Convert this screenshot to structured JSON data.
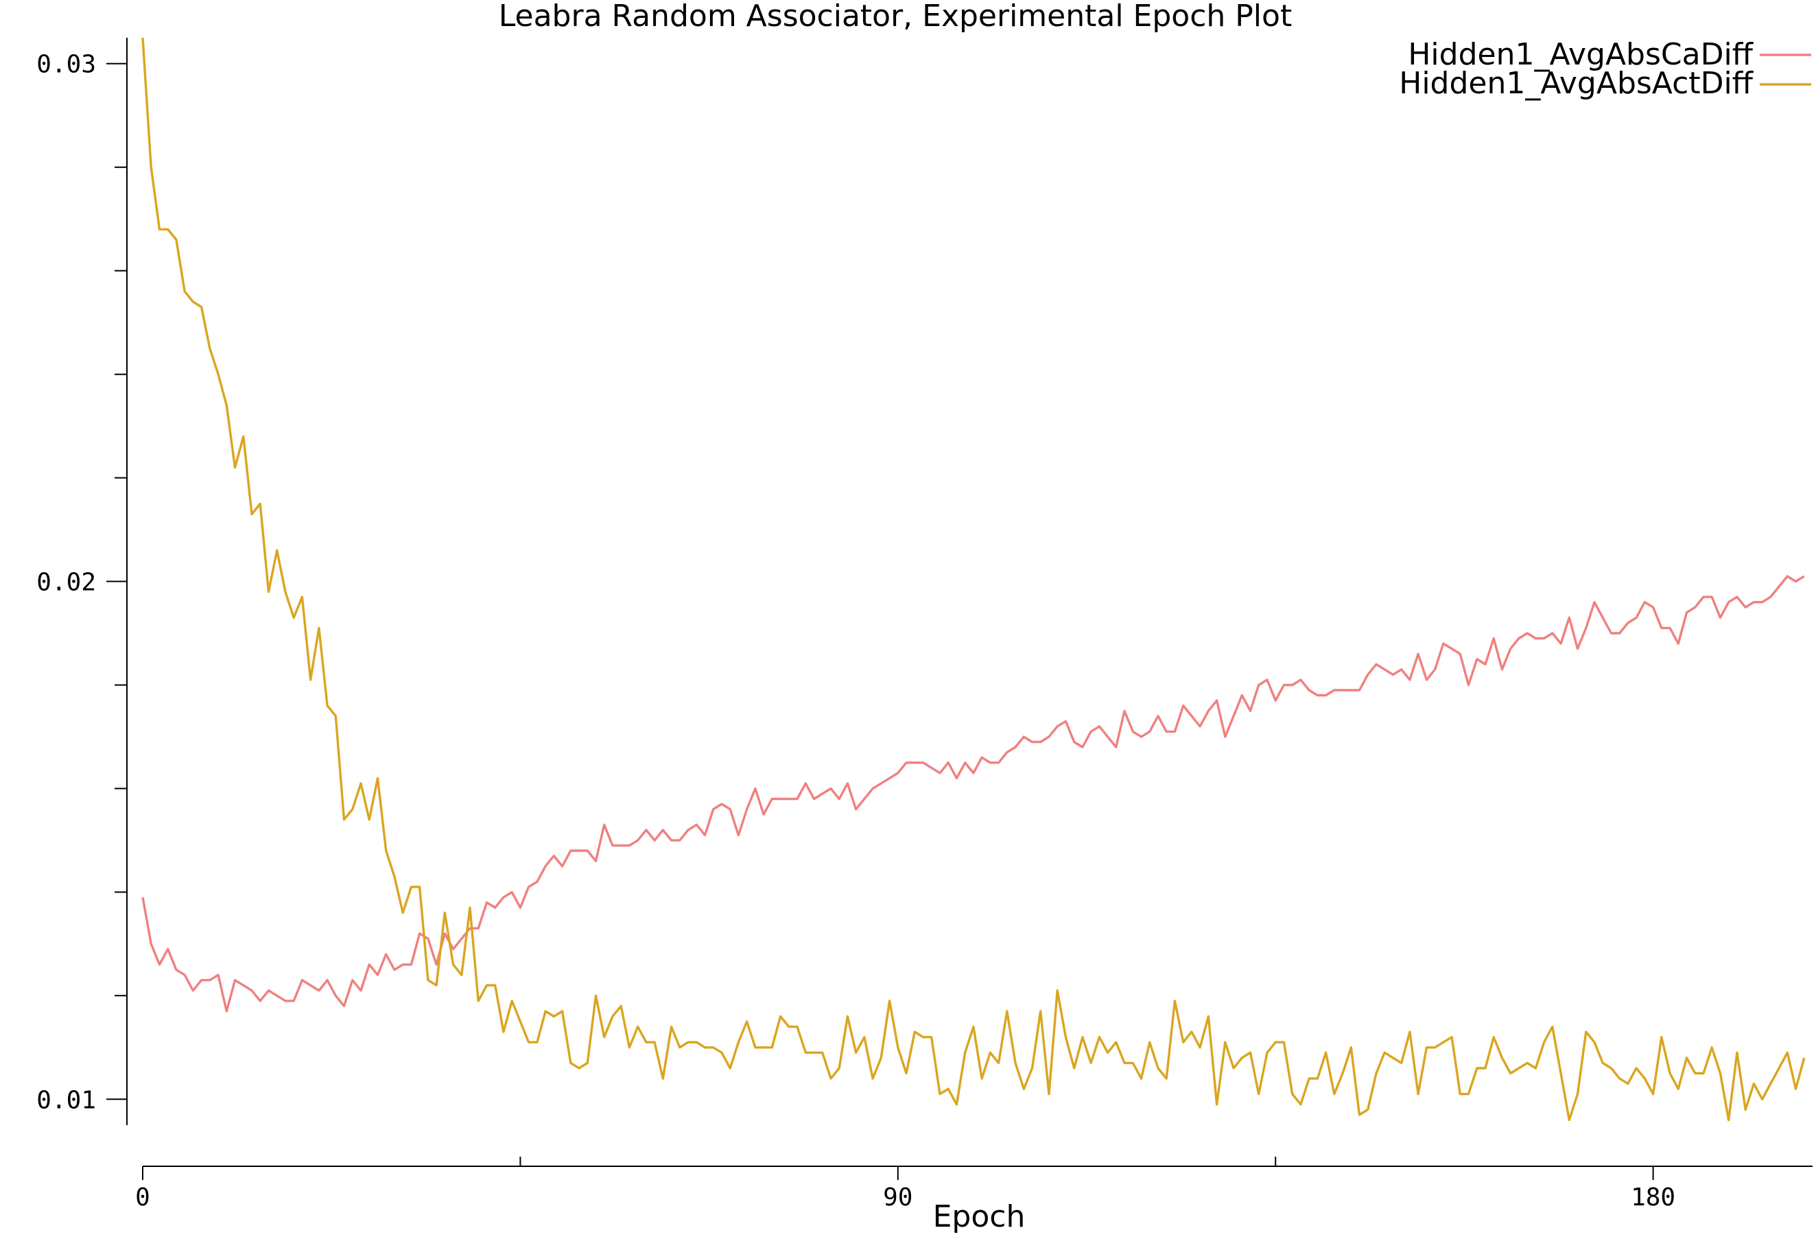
{
  "chart_data": {
    "type": "line",
    "title": "Leabra Random Associator, Experimental Epoch Plot",
    "xlabel": "Epoch",
    "ylabel": "",
    "xlim": [
      0,
      199
    ],
    "ylim": [
      0.0095,
      0.0305
    ],
    "x_ticks": [
      0,
      45,
      90,
      135,
      180
    ],
    "x_tick_labels": [
      "0",
      "",
      "90",
      "",
      "180"
    ],
    "y_ticks": [
      0.01,
      0.012,
      0.014,
      0.016,
      0.018,
      0.02,
      0.022,
      0.024,
      0.026,
      0.028,
      0.03
    ],
    "y_tick_labels": [
      "0.01",
      "",
      "",
      "",
      "",
      "0.02",
      "",
      "",
      "",
      "",
      "0.03"
    ],
    "legend_position": "top-right",
    "series": [
      {
        "name": "Hidden1_AvgAbsCaDiff",
        "color": "#f08080",
        "values": [
          0.0139,
          0.013,
          0.0126,
          0.0129,
          0.0125,
          0.0124,
          0.0121,
          0.0123,
          0.0123,
          0.0124,
          0.0117,
          0.0123,
          0.0122,
          0.0121,
          0.0119,
          0.0121,
          0.012,
          0.0119,
          0.0119,
          0.0123,
          0.0122,
          0.0121,
          0.0123,
          0.012,
          0.0118,
          0.0123,
          0.0121,
          0.0126,
          0.0124,
          0.0128,
          0.0125,
          0.0126,
          0.0126,
          0.0132,
          0.0131,
          0.0126,
          0.0132,
          0.0129,
          0.0131,
          0.0133,
          0.0133,
          0.0138,
          0.0137,
          0.0139,
          0.014,
          0.0137,
          0.0141,
          0.0142,
          0.0145,
          0.0147,
          0.0145,
          0.0148,
          0.0148,
          0.0148,
          0.0146,
          0.0153,
          0.0149,
          0.0149,
          0.0149,
          0.015,
          0.0152,
          0.015,
          0.0152,
          0.015,
          0.015,
          0.0152,
          0.0153,
          0.0151,
          0.0156,
          0.0157,
          0.0156,
          0.0151,
          0.0156,
          0.016,
          0.0155,
          0.0158,
          0.0158,
          0.0158,
          0.0158,
          0.0161,
          0.0158,
          0.0159,
          0.016,
          0.0158,
          0.0161,
          0.0156,
          0.0158,
          0.016,
          0.0161,
          0.0162,
          0.0163,
          0.0165,
          0.0165,
          0.0165,
          0.0164,
          0.0163,
          0.0165,
          0.0162,
          0.0165,
          0.0163,
          0.0166,
          0.0165,
          0.0165,
          0.0167,
          0.0168,
          0.017,
          0.0169,
          0.0169,
          0.017,
          0.0172,
          0.0173,
          0.0169,
          0.0168,
          0.0171,
          0.0172,
          0.017,
          0.0168,
          0.0175,
          0.0171,
          0.017,
          0.0171,
          0.0174,
          0.0171,
          0.0171,
          0.0176,
          0.0174,
          0.0172,
          0.0175,
          0.0177,
          0.017,
          0.0174,
          0.0178,
          0.0175,
          0.018,
          0.0181,
          0.0177,
          0.018,
          0.018,
          0.0181,
          0.0179,
          0.0178,
          0.0178,
          0.0179,
          0.0179,
          0.0179,
          0.0179,
          0.0182,
          0.0184,
          0.0183,
          0.0182,
          0.0183,
          0.0181,
          0.0186,
          0.0181,
          0.0183,
          0.0188,
          0.0187,
          0.0186,
          0.018,
          0.0185,
          0.0184,
          0.0189,
          0.0183,
          0.0187,
          0.0189,
          0.019,
          0.0189,
          0.0189,
          0.019,
          0.0188,
          0.0193,
          0.0187,
          0.0191,
          0.0196,
          0.0193,
          0.019,
          0.019,
          0.0192,
          0.0193,
          0.0196,
          0.0195,
          0.0191,
          0.0191,
          0.0188,
          0.0194,
          0.0195,
          0.0197,
          0.0197,
          0.0193,
          0.0196,
          0.0197,
          0.0195,
          0.0196,
          0.0196,
          0.0197,
          0.0199,
          0.0201,
          0.02,
          0.0201
        ]
      },
      {
        "name": "Hidden1_AvgAbsActDiff",
        "color": "#daa520",
        "values": [
          0.0305,
          0.028,
          0.0268,
          0.0268,
          0.0266,
          0.0256,
          0.0254,
          0.0253,
          0.0245,
          0.024,
          0.0234,
          0.0222,
          0.0228,
          0.0213,
          0.0215,
          0.0198,
          0.0206,
          0.0198,
          0.0193,
          0.0197,
          0.0181,
          0.0191,
          0.0176,
          0.0174,
          0.0154,
          0.0156,
          0.0161,
          0.0154,
          0.0162,
          0.0148,
          0.0143,
          0.0136,
          0.0141,
          0.0141,
          0.0123,
          0.0122,
          0.0136,
          0.0126,
          0.0124,
          0.0137,
          0.0119,
          0.0122,
          0.0122,
          0.0113,
          0.0119,
          0.0115,
          0.0111,
          0.0111,
          0.0117,
          0.0116,
          0.0117,
          0.0107,
          0.0106,
          0.0107,
          0.012,
          0.0112,
          0.0116,
          0.0118,
          0.011,
          0.0114,
          0.0111,
          0.0111,
          0.0104,
          0.0114,
          0.011,
          0.0111,
          0.0111,
          0.011,
          0.011,
          0.0109,
          0.0106,
          0.0111,
          0.0115,
          0.011,
          0.011,
          0.011,
          0.0116,
          0.0114,
          0.0114,
          0.0109,
          0.0109,
          0.0109,
          0.0104,
          0.0106,
          0.0116,
          0.0109,
          0.0112,
          0.0104,
          0.0108,
          0.0119,
          0.011,
          0.0105,
          0.0113,
          0.0112,
          0.0112,
          0.0101,
          0.0102,
          0.0099,
          0.0109,
          0.0114,
          0.0104,
          0.0109,
          0.0107,
          0.0117,
          0.0107,
          0.0102,
          0.0106,
          0.0117,
          0.0101,
          0.0121,
          0.0112,
          0.0106,
          0.0112,
          0.0107,
          0.0112,
          0.0109,
          0.0111,
          0.0107,
          0.0107,
          0.0104,
          0.0111,
          0.0106,
          0.0104,
          0.0119,
          0.0111,
          0.0113,
          0.011,
          0.0116,
          0.0099,
          0.0111,
          0.0106,
          0.0108,
          0.0109,
          0.0101,
          0.0109,
          0.0111,
          0.0111,
          0.0101,
          0.0099,
          0.0104,
          0.0104,
          0.0109,
          0.0101,
          0.0105,
          0.011,
          0.0097,
          0.0098,
          0.0105,
          0.0109,
          0.0108,
          0.0107,
          0.0113,
          0.0101,
          0.011,
          0.011,
          0.0111,
          0.0112,
          0.0101,
          0.0101,
          0.0106,
          0.0106,
          0.0112,
          0.0108,
          0.0105,
          0.0106,
          0.0107,
          0.0106,
          0.0111,
          0.0114,
          0.0105,
          0.0096,
          0.0101,
          0.0113,
          0.0111,
          0.0107,
          0.0106,
          0.0104,
          0.0103,
          0.0106,
          0.0104,
          0.0101,
          0.0112,
          0.0105,
          0.0102,
          0.0108,
          0.0105,
          0.0105,
          0.011,
          0.0105,
          0.0096,
          0.0109,
          0.0098,
          0.0103,
          0.01,
          0.0103,
          0.0106,
          0.0109,
          0.0102,
          0.0108
        ]
      }
    ]
  }
}
